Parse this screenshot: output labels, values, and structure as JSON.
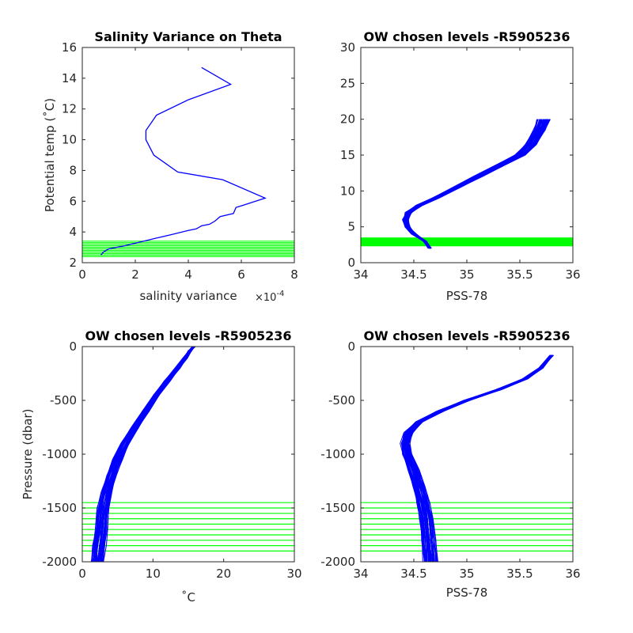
{
  "colors": {
    "profile": "#0000ff",
    "levels": "#00ff00",
    "axes": "#262626"
  },
  "chart_data": [
    {
      "type": "line",
      "title": "Salinity Variance on Theta",
      "xlabel": "salinity variance",
      "x_multiplier": "×10",
      "x_multiplier_exp": "-4",
      "ylabel": "Potential temp (˚C)",
      "xlim": [
        0,
        8
      ],
      "ylim": [
        2,
        16
      ],
      "xticks": [
        "0",
        "2",
        "4",
        "6",
        "8"
      ],
      "yticks": [
        "2",
        "4",
        "6",
        "8",
        "10",
        "12",
        "14",
        "16"
      ],
      "series": [
        {
          "x": [
            4.5,
            5.6,
            4.0,
            2.8,
            2.4,
            2.4,
            2.7,
            3.6,
            5.3,
            6.9,
            6.0,
            5.8,
            5.7,
            5.2,
            5.0,
            4.8,
            4.5,
            4.3,
            4.0,
            3.3,
            2.8,
            1.6,
            1.0,
            0.8,
            0.7
          ],
          "y": [
            14.7,
            13.6,
            12.6,
            11.6,
            10.6,
            10.0,
            9.0,
            7.9,
            7.4,
            6.2,
            5.7,
            5.6,
            5.2,
            5.0,
            4.7,
            4.5,
            4.4,
            4.2,
            4.1,
            3.8,
            3.6,
            3.1,
            2.9,
            2.7,
            2.5
          ]
        }
      ],
      "levels_y": [
        2.4,
        2.5,
        2.6,
        2.7,
        2.8,
        2.9,
        3.0,
        3.1,
        3.2,
        3.3,
        3.4
      ]
    },
    {
      "type": "line",
      "title": "OW chosen levels -R5905236",
      "xlabel": "PSS-78",
      "ylabel": "",
      "xlim": [
        34,
        36
      ],
      "ylim": [
        0,
        30
      ],
      "xticks": [
        "34",
        "34.5",
        "35",
        "35.5",
        "36"
      ],
      "yticks": [
        "0",
        "5",
        "10",
        "15",
        "20",
        "25",
        "30"
      ],
      "base_profile": {
        "x": [
          34.65,
          34.6,
          34.5,
          34.44,
          34.42,
          34.45,
          34.55,
          34.7,
          34.9,
          35.1,
          35.3,
          35.5,
          35.6,
          35.68,
          35.72
        ],
        "y": [
          2.0,
          3.0,
          4.0,
          5.0,
          6.0,
          7.0,
          8.0,
          9.0,
          10.5,
          12.0,
          13.5,
          15.0,
          16.5,
          18.5,
          20.0
        ]
      },
      "levels_y": [
        2.4,
        2.5,
        2.6,
        2.7,
        2.8,
        2.9,
        3.0,
        3.1,
        3.2,
        3.3,
        3.4
      ]
    },
    {
      "type": "line",
      "title": "OW chosen levels -R5905236",
      "xlabel": "˚C",
      "ylabel": "Pressure (dbar)",
      "xlim": [
        0,
        30
      ],
      "ylim": [
        -2000,
        0
      ],
      "xticks": [
        "0",
        "10",
        "20",
        "30"
      ],
      "yticks": [
        "-2000",
        "-1500",
        "-1000",
        "-500",
        "0"
      ],
      "base_profile": {
        "x": [
          2.2,
          2.4,
          2.7,
          3.0,
          3.5,
          4.1,
          5.0,
          6.1,
          7.5,
          9.0,
          10.5,
          12.0,
          13.5,
          14.5,
          15.2,
          15.8
        ],
        "y": [
          -2000,
          -1850,
          -1700,
          -1500,
          -1350,
          -1200,
          -1050,
          -900,
          -750,
          -600,
          -450,
          -320,
          -200,
          -110,
          -40,
          0
        ]
      },
      "levels_y": [
        -1450,
        -1500,
        -1550,
        -1600,
        -1650,
        -1700,
        -1750,
        -1800,
        -1850,
        -1900
      ]
    },
    {
      "type": "line",
      "title": "OW chosen levels -R5905236",
      "xlabel": "PSS-78",
      "ylabel": "",
      "xlim": [
        34,
        36
      ],
      "ylim": [
        -2000,
        0
      ],
      "xticks": [
        "34",
        "34.5",
        "35",
        "35.5",
        "36"
      ],
      "yticks": [
        "-2000",
        "-1500",
        "-1000",
        "-500",
        "0"
      ],
      "base_profile": {
        "x": [
          34.66,
          34.64,
          34.62,
          34.59,
          34.55,
          34.5,
          34.44,
          34.42,
          34.45,
          34.55,
          34.75,
          35.0,
          35.3,
          35.55,
          35.7,
          35.8
        ],
        "y": [
          -2000,
          -1800,
          -1600,
          -1450,
          -1300,
          -1150,
          -1000,
          -900,
          -800,
          -700,
          -600,
          -500,
          -400,
          -300,
          -200,
          -80
        ]
      },
      "levels_y": [
        -1450,
        -1500,
        -1550,
        -1600,
        -1650,
        -1700,
        -1750,
        -1800,
        -1850,
        -1900
      ]
    }
  ]
}
